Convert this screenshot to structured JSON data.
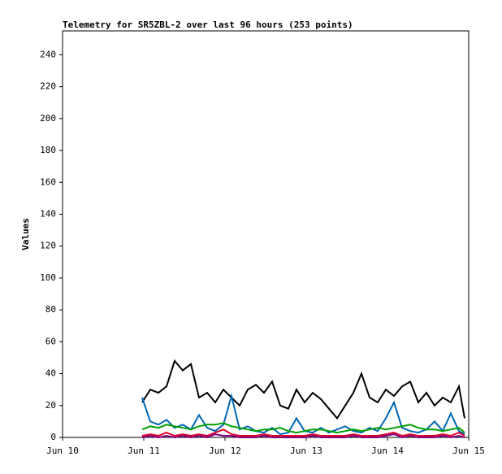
{
  "chart_data": {
    "type": "line",
    "title": "Telemetry for SR5ZBL-2 over last 96 hours (253 points)",
    "y_label": "Values",
    "x": [
      0.98,
      1.08,
      1.18,
      1.28,
      1.38,
      1.48,
      1.58,
      1.68,
      1.78,
      1.88,
      1.98,
      2.08,
      2.18,
      2.28,
      2.38,
      2.48,
      2.58,
      2.68,
      2.78,
      2.88,
      2.98,
      3.08,
      3.18,
      3.28,
      3.38,
      3.48,
      3.58,
      3.68,
      3.78,
      3.88,
      3.98,
      4.08,
      4.18,
      4.28,
      4.38,
      4.48,
      4.58,
      4.68,
      4.78,
      4.88,
      4.95
    ],
    "series": [
      {
        "color": "#000000",
        "values": [
          22,
          30,
          28,
          32,
          48,
          42,
          46,
          25,
          28,
          22,
          30,
          25,
          20,
          30,
          33,
          28,
          35,
          20,
          18,
          30,
          22,
          28,
          24,
          18,
          12,
          20,
          28,
          40,
          25,
          22,
          30,
          26,
          32,
          35,
          22,
          28,
          20,
          25,
          22,
          32,
          12
        ]
      },
      {
        "color": "#0066b3",
        "values": [
          25,
          10,
          8,
          11,
          6,
          8,
          5,
          14,
          6,
          4,
          8,
          26,
          5,
          7,
          4,
          3,
          6,
          2,
          3,
          12,
          4,
          3,
          6,
          3,
          5,
          7,
          4,
          3,
          6,
          4,
          12,
          22,
          6,
          4,
          3,
          5,
          10,
          4,
          15,
          4,
          2
        ]
      },
      {
        "color": "#00a000",
        "values": [
          5,
          7,
          6,
          8,
          7,
          6,
          5,
          7,
          8,
          8,
          9,
          7,
          6,
          5,
          4,
          5,
          5,
          6,
          4,
          3,
          4,
          5,
          5,
          4,
          3,
          4,
          5,
          4,
          5,
          6,
          5,
          6,
          7,
          8,
          6,
          5,
          5,
          4,
          5,
          6,
          3
        ]
      },
      {
        "color": "#e0002a",
        "values": [
          1,
          2,
          1,
          3,
          1,
          2,
          1,
          2,
          1,
          3,
          5,
          2,
          1,
          1,
          1,
          2,
          1,
          1,
          1,
          1,
          1,
          2,
          1,
          1,
          1,
          1,
          2,
          1,
          1,
          1,
          2,
          3,
          1,
          2,
          1,
          1,
          1,
          2,
          1,
          3,
          1
        ]
      },
      {
        "color": "#800080",
        "values": [
          0,
          1,
          0,
          1,
          0,
          1,
          0,
          1,
          0,
          2,
          1,
          1,
          0,
          0,
          0,
          1,
          0,
          0,
          0,
          0,
          0,
          1,
          0,
          0,
          0,
          0,
          1,
          0,
          0,
          0,
          1,
          2,
          0,
          1,
          0,
          0,
          0,
          1,
          0,
          1,
          0
        ]
      }
    ],
    "xlim": [
      0,
      5
    ],
    "xticks": [
      {
        "value": 0,
        "label": "Jun 10"
      },
      {
        "value": 1,
        "label": "Jun 11"
      },
      {
        "value": 2,
        "label": "Jun 12"
      },
      {
        "value": 3,
        "label": "Jun 13"
      },
      {
        "value": 4,
        "label": "Jun 14"
      },
      {
        "value": 5,
        "label": "Jun 15"
      }
    ],
    "ylim": [
      0,
      255
    ],
    "yticks": [
      0,
      20,
      40,
      60,
      80,
      100,
      120,
      140,
      160,
      180,
      200,
      220,
      240
    ]
  }
}
